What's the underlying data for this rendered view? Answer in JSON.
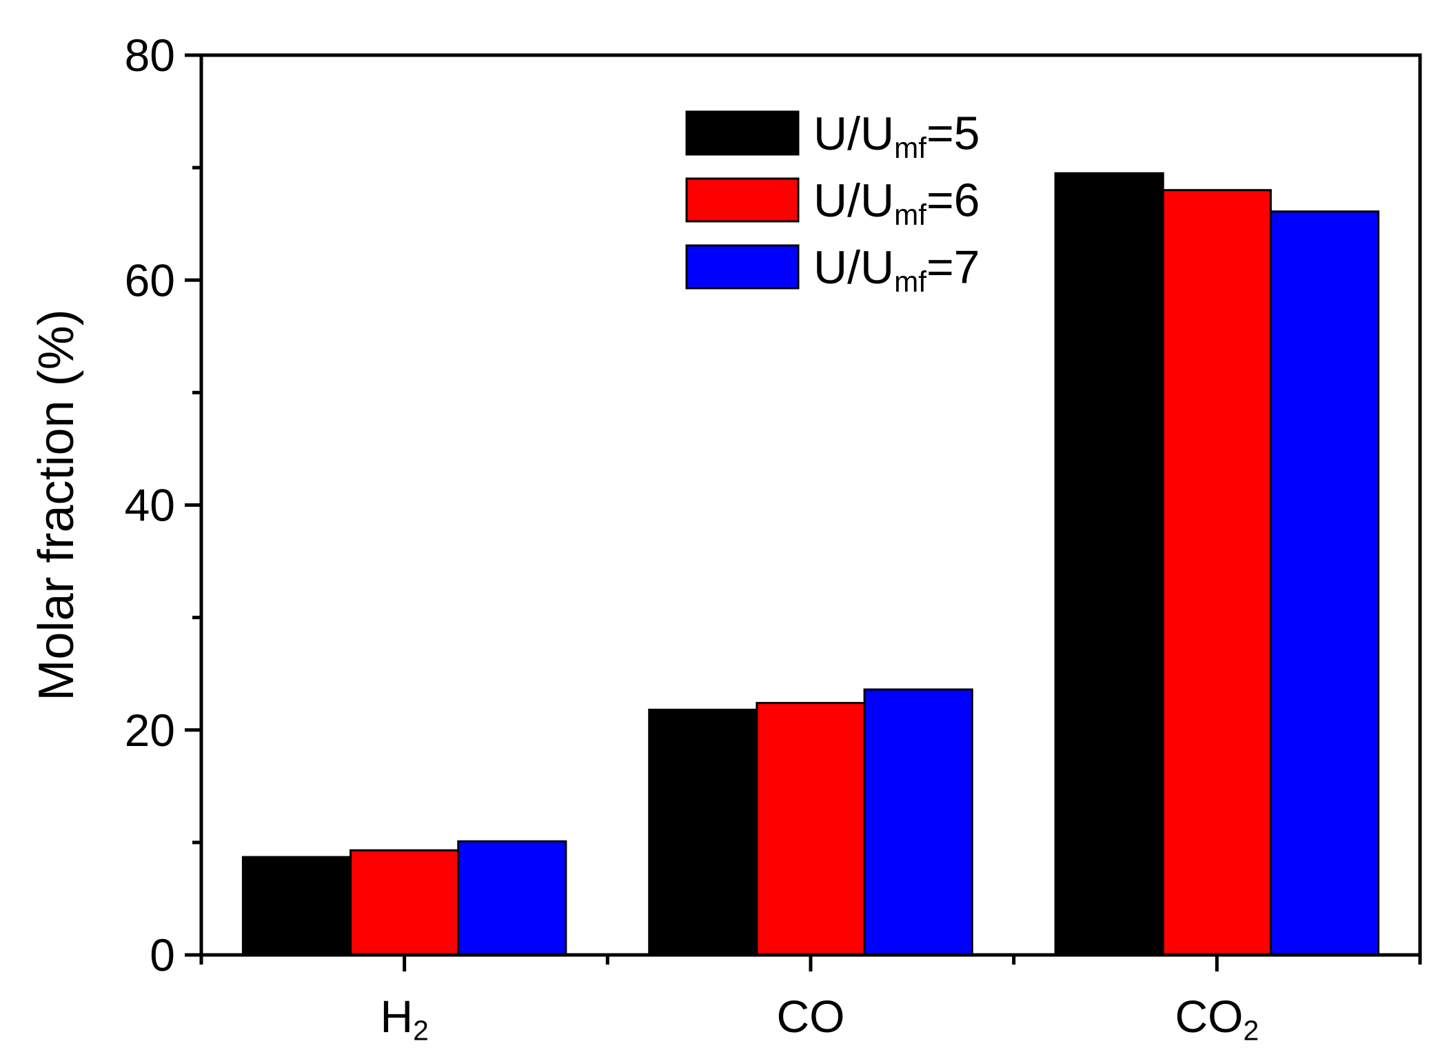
{
  "chart_data": {
    "type": "bar",
    "categories": [
      {
        "main": "H",
        "sub": "2"
      },
      {
        "main": "CO",
        "sub": ""
      },
      {
        "main": "CO",
        "sub": "2"
      }
    ],
    "series": [
      {
        "name": {
          "main": "U/U",
          "sub": "mf",
          "tail": "=5"
        },
        "color": "#000000",
        "values": [
          8.7,
          21.8,
          69.5
        ]
      },
      {
        "name": {
          "main": "U/U",
          "sub": "mf",
          "tail": "=6"
        },
        "color": "#ff0000",
        "values": [
          9.3,
          22.4,
          68.0
        ]
      },
      {
        "name": {
          "main": "U/U",
          "sub": "mf",
          "tail": "=7"
        },
        "color": "#0000ff",
        "values": [
          10.1,
          23.6,
          66.1
        ]
      }
    ],
    "ylabel": "Molar fraction (%)",
    "xlabel": "",
    "ylim": [
      0,
      80
    ],
    "yticks": [
      "0",
      "20",
      "40",
      "60",
      "80"
    ],
    "yminor_step": 10,
    "grid": false,
    "legend_position": "top-center"
  }
}
